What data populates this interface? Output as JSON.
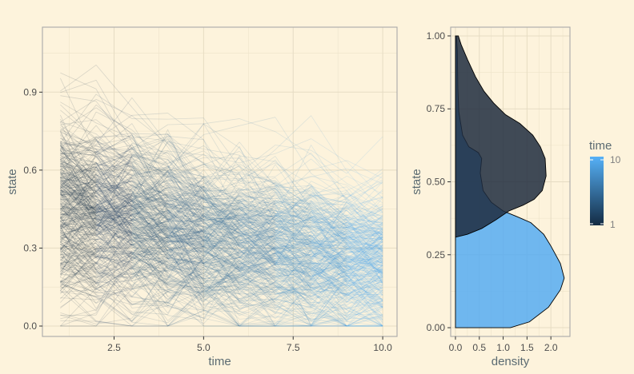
{
  "chart_data": [
    {
      "type": "line",
      "title": "",
      "xlabel": "time",
      "ylabel": "state",
      "xlim": [
        0.5,
        10.4
      ],
      "ylim": [
        -0.04,
        1.15
      ],
      "xticks": [
        2.5,
        5.0,
        7.5,
        10.0
      ],
      "xtick_labels": [
        "2.5",
        "5.0",
        "7.5",
        "10.0"
      ],
      "yticks": [
        0.0,
        0.3,
        0.6,
        0.9
      ],
      "ytick_labels": [
        "0.0",
        "0.3",
        "0.6",
        "0.9"
      ],
      "x": [
        1,
        2,
        3,
        4,
        5,
        6,
        7,
        8,
        9,
        10
      ],
      "n_series": 400,
      "mean_state_by_time": [
        0.45,
        0.42,
        0.4,
        0.37,
        0.34,
        0.31,
        0.29,
        0.27,
        0.25,
        0.24
      ],
      "sd_state_by_time": [
        0.2,
        0.19,
        0.18,
        0.18,
        0.17,
        0.17,
        0.16,
        0.16,
        0.15,
        0.15
      ],
      "max_state": 1.1,
      "color_by": "time",
      "grid": true
    },
    {
      "type": "area",
      "title": "",
      "xlabel": "density",
      "ylabel": "state",
      "xlim": [
        -0.1,
        2.4
      ],
      "ylim": [
        -0.03,
        1.03
      ],
      "xticks": [
        0.0,
        0.5,
        1.0,
        1.5,
        2.0
      ],
      "xtick_labels": [
        "0.0",
        "0.5",
        "1.0",
        "1.5",
        "2.0"
      ],
      "yticks": [
        0.0,
        0.25,
        0.5,
        0.75,
        1.0
      ],
      "ytick_labels": [
        "0.00",
        "0.25",
        "0.50",
        "0.75",
        "1.00"
      ],
      "series": [
        {
          "time": 1,
          "color": "#1f2c3e",
          "points": [
            [
              0.0,
              0.3
            ],
            [
              0.0,
              0.31
            ],
            [
              0.25,
              0.32
            ],
            [
              0.55,
              0.34
            ],
            [
              0.85,
              0.37
            ],
            [
              1.12,
              0.4
            ],
            [
              1.42,
              0.42
            ],
            [
              1.65,
              0.44
            ],
            [
              1.82,
              0.47
            ],
            [
              1.9,
              0.52
            ],
            [
              1.88,
              0.58
            ],
            [
              1.78,
              0.62
            ],
            [
              1.62,
              0.66
            ],
            [
              1.35,
              0.7
            ],
            [
              1.05,
              0.73
            ],
            [
              0.8,
              0.77
            ],
            [
              0.6,
              0.81
            ],
            [
              0.42,
              0.86
            ],
            [
              0.25,
              0.92
            ],
            [
              0.12,
              0.97
            ],
            [
              0.06,
              1.0
            ],
            [
              0.0,
              1.0
            ]
          ]
        },
        {
          "time": 10,
          "color": "#56acf2",
          "points": [
            [
              0.0,
              0.0
            ],
            [
              1.15,
              0.0
            ],
            [
              1.55,
              0.02
            ],
            [
              1.95,
              0.07
            ],
            [
              2.2,
              0.13
            ],
            [
              2.28,
              0.17
            ],
            [
              2.2,
              0.22
            ],
            [
              2.0,
              0.28
            ],
            [
              1.85,
              0.32
            ],
            [
              1.58,
              0.36
            ],
            [
              1.3,
              0.38
            ],
            [
              1.0,
              0.4
            ],
            [
              0.75,
              0.43
            ],
            [
              0.58,
              0.47
            ],
            [
              0.52,
              0.53
            ],
            [
              0.55,
              0.58
            ],
            [
              0.48,
              0.6
            ],
            [
              0.28,
              0.62
            ],
            [
              0.15,
              0.66
            ],
            [
              0.07,
              0.74
            ],
            [
              0.05,
              0.82
            ],
            [
              0.04,
              0.95
            ],
            [
              0.02,
              1.0
            ],
            [
              0.0,
              1.0
            ]
          ]
        }
      ],
      "grid": true
    }
  ],
  "legend": {
    "title": "time",
    "min_label": "1",
    "max_label": "10",
    "color_low": "#132b43",
    "color_high": "#56b1f7"
  }
}
